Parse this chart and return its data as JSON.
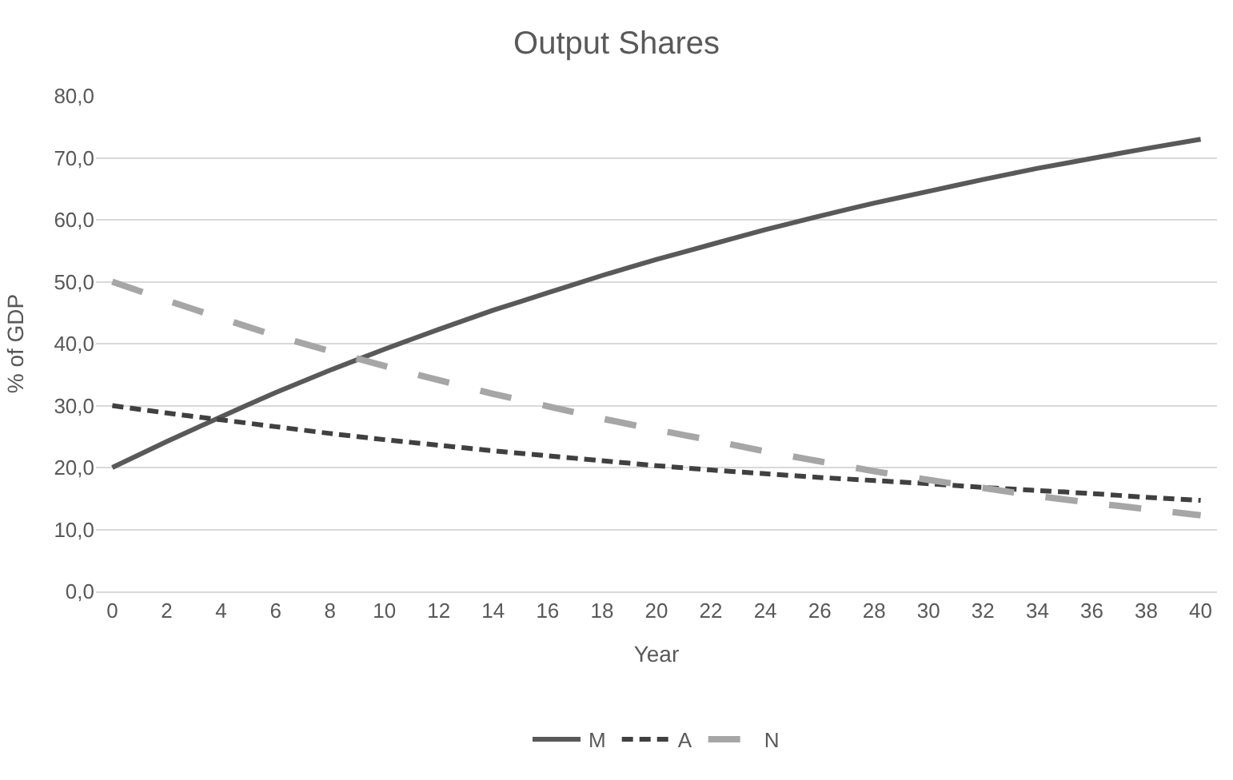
{
  "chart_data": {
    "type": "line",
    "title": "Output Shares",
    "xlabel": "Year",
    "ylabel": "% of GDP",
    "x": [
      0,
      2,
      4,
      6,
      8,
      10,
      12,
      14,
      16,
      18,
      20,
      22,
      24,
      26,
      28,
      30,
      32,
      34,
      36,
      38,
      40
    ],
    "xlim": [
      -0.6,
      40.6
    ],
    "xticks": [
      0,
      2,
      4,
      6,
      8,
      10,
      12,
      14,
      16,
      18,
      20,
      22,
      24,
      26,
      28,
      30,
      32,
      34,
      36,
      38,
      40
    ],
    "ylim": [
      0,
      80
    ],
    "yticks": [
      {
        "value": 0,
        "label": "0,0"
      },
      {
        "value": 10,
        "label": "10,0"
      },
      {
        "value": 20,
        "label": "20,0"
      },
      {
        "value": 30,
        "label": "30,0"
      },
      {
        "value": 40,
        "label": "40,0"
      },
      {
        "value": 50,
        "label": "50,0"
      },
      {
        "value": 60,
        "label": "60,0"
      },
      {
        "value": 70,
        "label": "70,0"
      },
      {
        "value": 80,
        "label": "80,0"
      }
    ],
    "grid": "y",
    "legend": "bottom",
    "marker": "none",
    "series": [
      {
        "name": "M",
        "color": "#595959",
        "line_style": "solid",
        "values": [
          20,
          24.2,
          28.2,
          32.1,
          35.7,
          39.1,
          42.3,
          45.4,
          48.2,
          51.0,
          53.6,
          56.0,
          58.4,
          60.6,
          62.7,
          64.6,
          66.5,
          68.3,
          69.9,
          71.5,
          73.0
        ]
      },
      {
        "name": "A",
        "color": "#404040",
        "line_style": "dashed",
        "values": [
          30,
          28.8,
          27.7,
          26.6,
          25.5,
          24.5,
          23.6,
          22.7,
          21.9,
          21.1,
          20.3,
          19.6,
          19.0,
          18.4,
          17.9,
          17.4,
          16.8,
          16.3,
          15.8,
          15.2,
          14.7
        ]
      },
      {
        "name": "N",
        "color": "#a6a6a6",
        "line_style": "longdashed",
        "values": [
          50,
          47.0,
          44.1,
          41.3,
          38.8,
          36.4,
          34.1,
          31.9,
          29.9,
          27.9,
          26.1,
          24.4,
          22.6,
          21.0,
          19.4,
          18.0,
          16.7,
          15.4,
          14.3,
          13.3,
          12.3
        ]
      }
    ]
  }
}
